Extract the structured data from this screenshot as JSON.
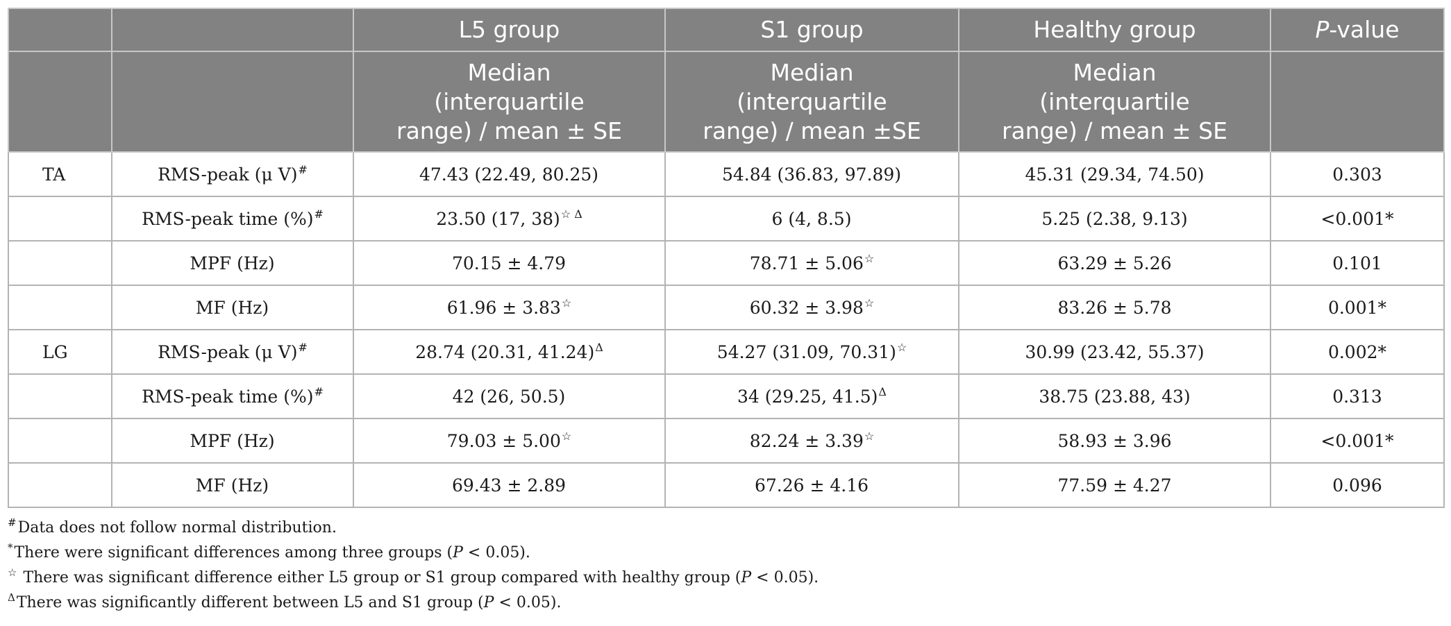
{
  "table": {
    "header": {
      "col_l5": "L5 group",
      "col_s1": "S1 group",
      "col_healthy": "Healthy group",
      "col_p_italic": "P",
      "col_p_rest": "-value",
      "sub_l5": [
        "Median",
        "(interquartile",
        "range) / mean ± SE"
      ],
      "sub_s1": [
        "Median",
        "(interquartile",
        "range) / mean ±SE"
      ],
      "sub_healthy": [
        "Median",
        "(interquartile",
        "range) / mean ± SE"
      ]
    },
    "rows": [
      {
        "muscle": "TA",
        "measure": "RMS-peak (μ V)",
        "measure_mark": "#",
        "l5": "47.43 (22.49, 80.25)",
        "l5_mark": "",
        "s1": "54.84 (36.83, 97.89)",
        "s1_mark": "",
        "healthy": "45.31 (29.34, 74.50)",
        "p": "0.303"
      },
      {
        "muscle": "",
        "measure": "RMS-peak time (%)",
        "measure_mark": "#",
        "l5": "23.50 (17, 38)",
        "l5_mark": "☆ Δ",
        "s1": "6 (4, 8.5)",
        "s1_mark": "",
        "healthy": "5.25 (2.38, 9.13)",
        "p": "<0.001*"
      },
      {
        "muscle": "",
        "measure": "MPF (Hz)",
        "measure_mark": "",
        "l5": "70.15 ± 4.79",
        "l5_mark": "",
        "s1": "78.71 ± 5.06",
        "s1_mark": "☆",
        "healthy": "63.29 ± 5.26",
        "p": "0.101"
      },
      {
        "muscle": "",
        "measure": "MF (Hz)",
        "measure_mark": "",
        "l5": "61.96 ± 3.83",
        "l5_mark": "☆",
        "s1": "60.32 ± 3.98",
        "s1_mark": "☆",
        "healthy": "83.26 ± 5.78",
        "p": "0.001*"
      },
      {
        "muscle": "LG",
        "measure": "RMS-peak (μ V)",
        "measure_mark": "#",
        "l5": "28.74 (20.31, 41.24)",
        "l5_mark": "Δ",
        "s1": "54.27 (31.09, 70.31)",
        "s1_mark": "☆",
        "healthy": "30.99 (23.42, 55.37)",
        "p": "0.002*"
      },
      {
        "muscle": "",
        "measure": "RMS-peak time (%)",
        "measure_mark": "#",
        "l5": "42 (26, 50.5)",
        "l5_mark": "",
        "s1": "34 (29.25, 41.5)",
        "s1_mark": "Δ",
        "healthy": "38.75 (23.88, 43)",
        "p": "0.313"
      },
      {
        "muscle": "",
        "measure": "MPF (Hz)",
        "measure_mark": "",
        "l5": "79.03 ± 5.00",
        "l5_mark": "☆",
        "s1": "82.24 ± 3.39",
        "s1_mark": "☆",
        "healthy": "58.93 ± 3.96",
        "p": "<0.001*"
      },
      {
        "muscle": "",
        "measure": "MF (Hz)",
        "measure_mark": "",
        "l5": "69.43 ± 2.89",
        "l5_mark": "",
        "s1": "67.26 ± 4.16",
        "s1_mark": "",
        "healthy": "77.59 ± 4.27",
        "p": "0.096"
      }
    ]
  },
  "footnotes": {
    "n1": {
      "mark": "#",
      "text": "Data does not follow normal distribution."
    },
    "n2": {
      "mark": "*",
      "pre": "There were significant differences among three groups (",
      "p": "P",
      "post": " < 0.05)."
    },
    "n3": {
      "mark": "☆",
      "pre": " There was significant difference either L5 group or S1 group compared with healthy group (",
      "p": "P",
      "post": " < 0.05)."
    },
    "n4": {
      "mark": "Δ",
      "pre": "There was significantly different between L5 and S1 group (",
      "p": "P",
      "post": " < 0.05)."
    }
  }
}
